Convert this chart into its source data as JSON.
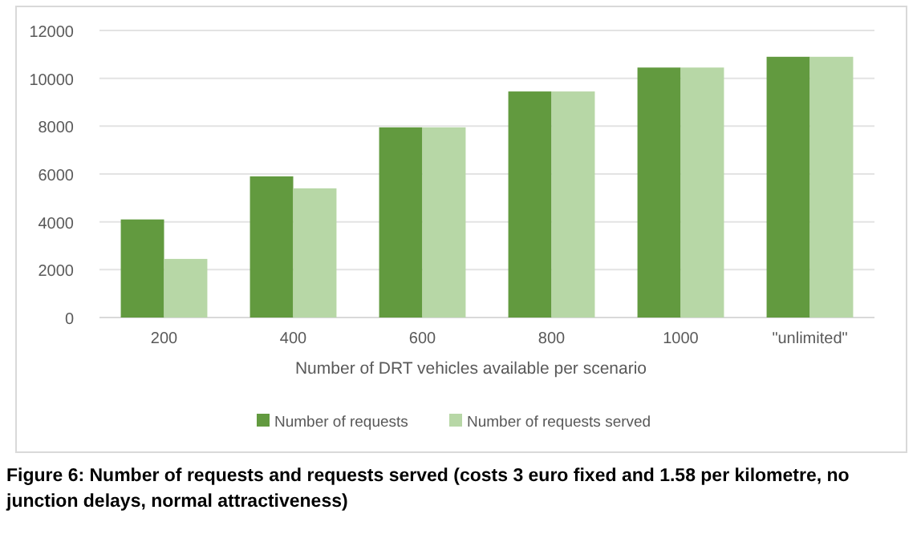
{
  "chart_data": {
    "type": "bar",
    "xlabel": "Number of DRT vehicles available per scenario",
    "categories": [
      "200",
      "400",
      "600",
      "800",
      "1000",
      "\"unlimited\""
    ],
    "series": [
      {
        "name": "Number of requests",
        "color": "#629a3f",
        "values": [
          4100,
          5900,
          7950,
          9450,
          10450,
          10900
        ]
      },
      {
        "name": "Number of requests served",
        "color": "#b7d7a6",
        "values": [
          2450,
          5400,
          7950,
          9450,
          10450,
          10900
        ]
      }
    ],
    "ylim": [
      0,
      12000
    ],
    "yticks": [
      0,
      2000,
      4000,
      6000,
      8000,
      10000,
      12000
    ],
    "grid": "y",
    "legend": "bottom",
    "annotations": [
      "Figure 6: Number of requests and requests served (costs 3 euro fixed and 1.58 per kilometre, no junction delays, normal attractiveness)"
    ]
  }
}
